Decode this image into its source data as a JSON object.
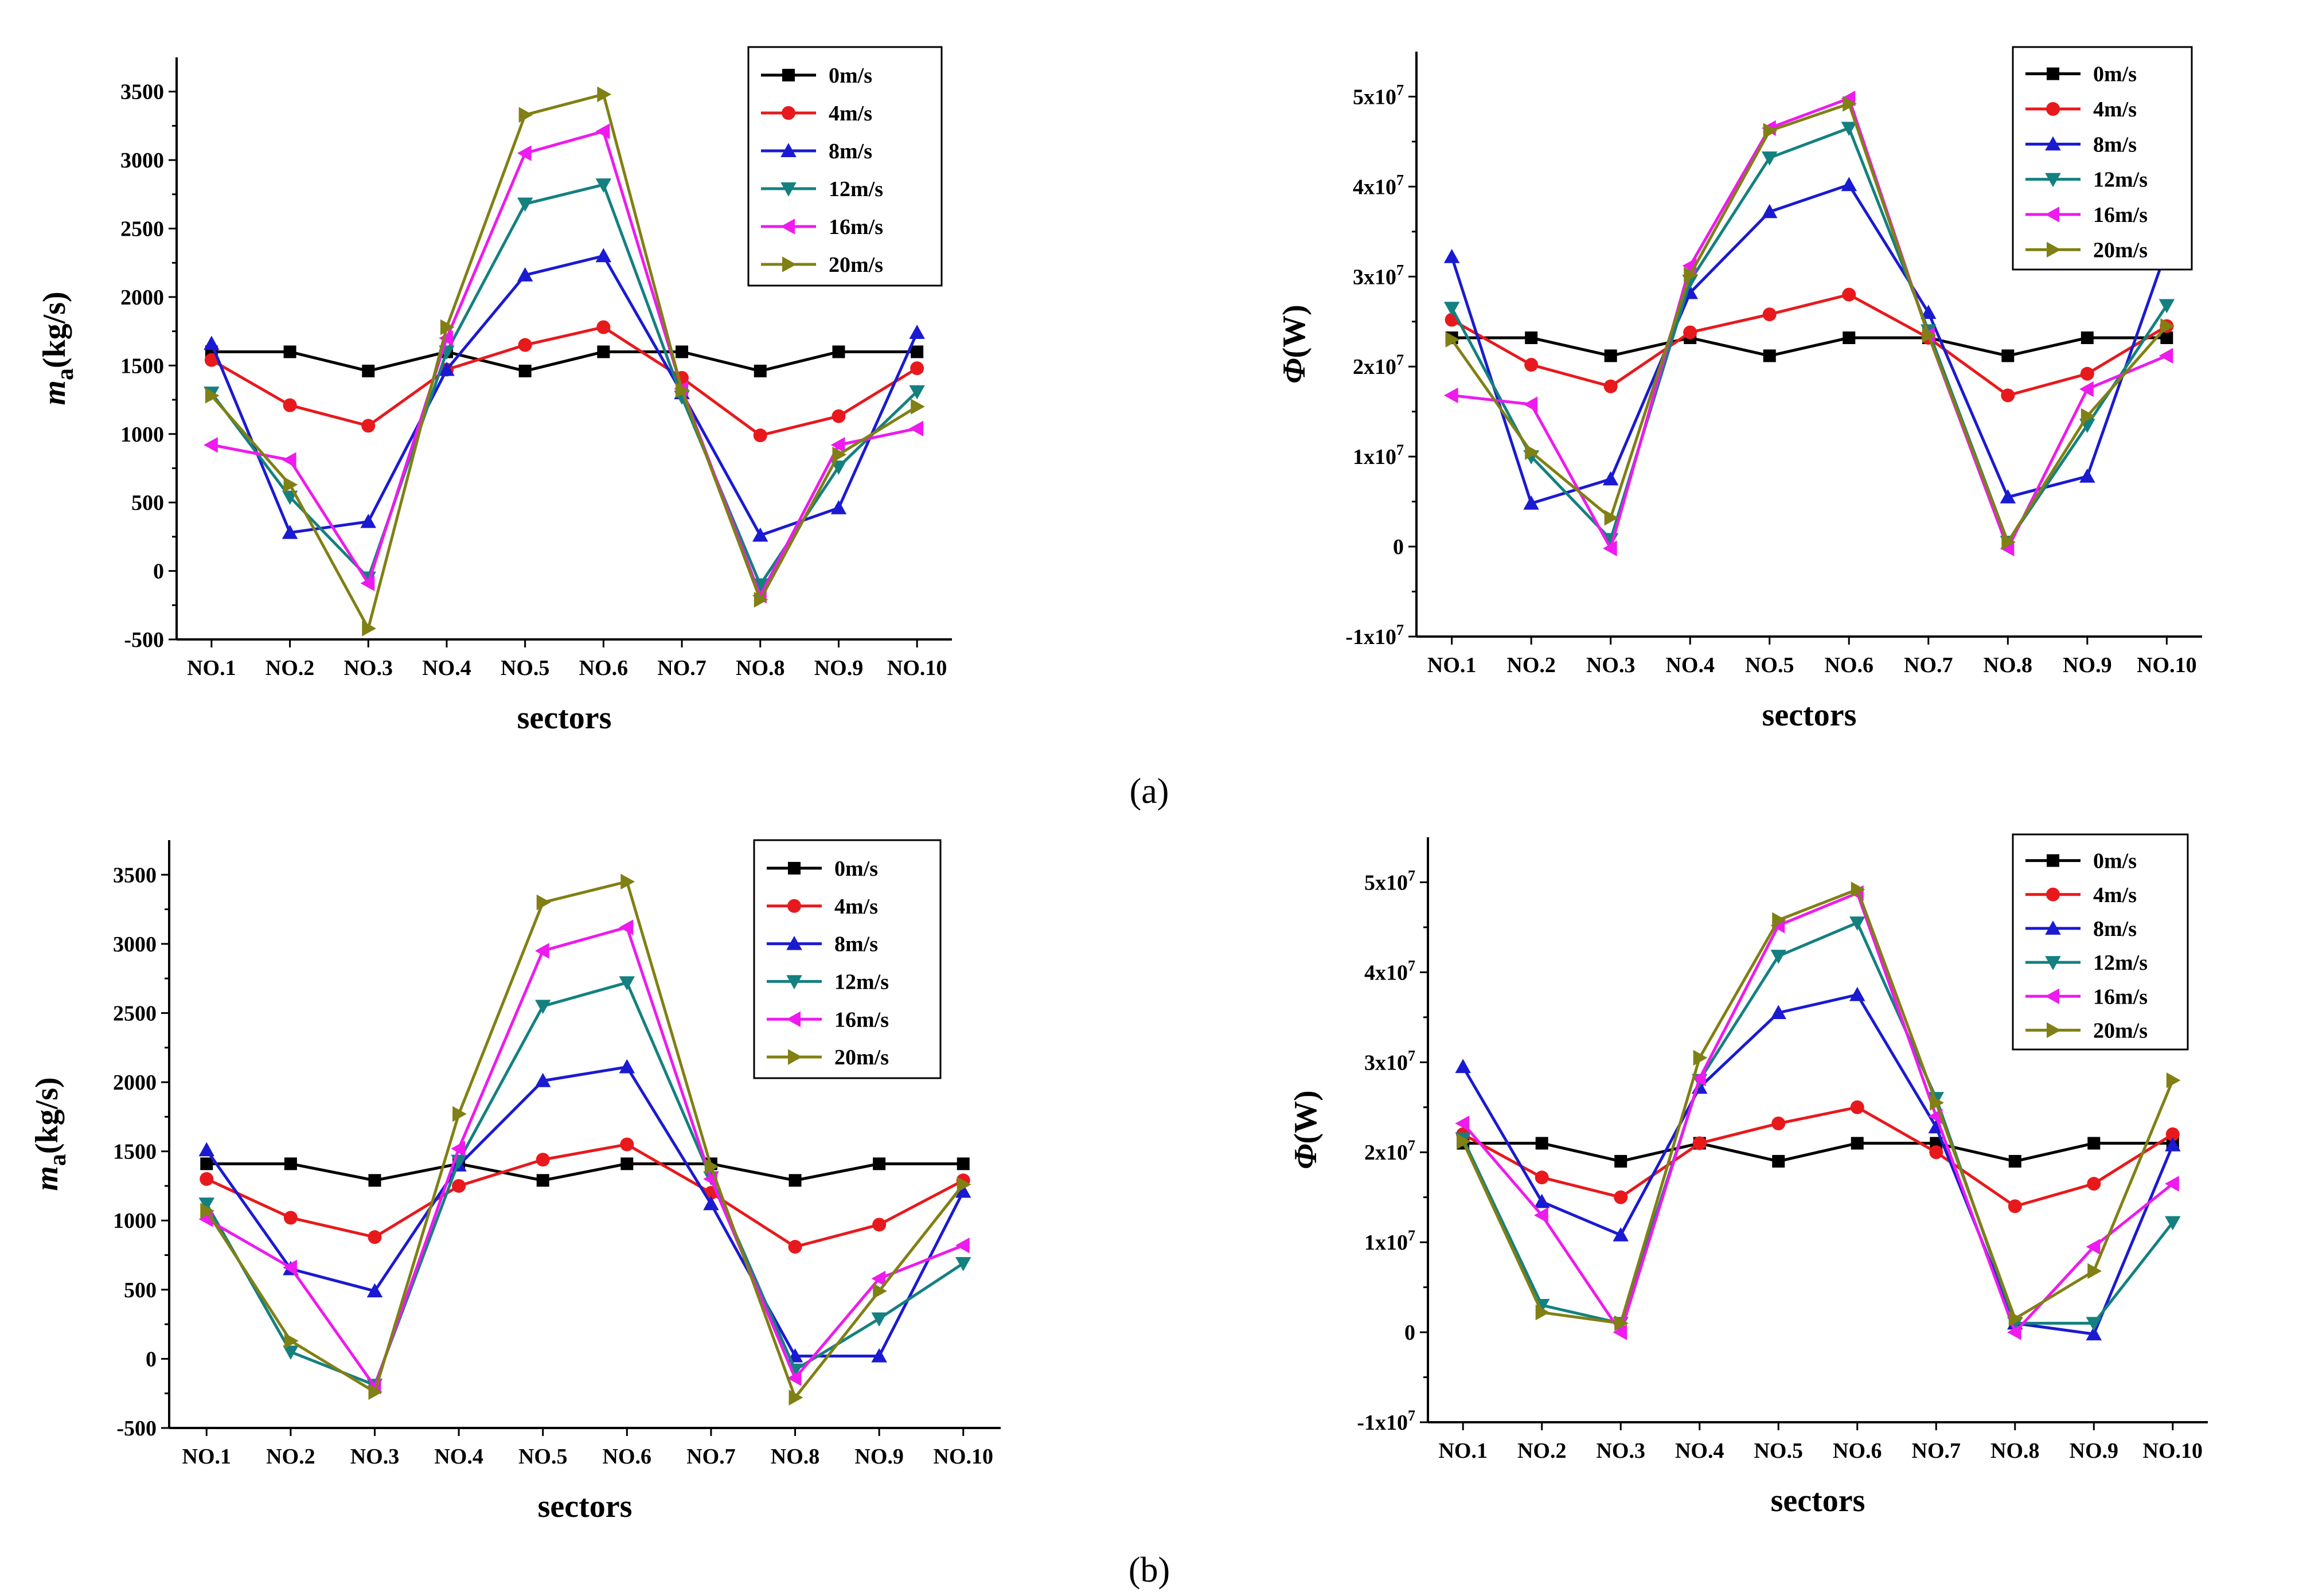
{
  "captions": [
    "(a)",
    "(b)"
  ],
  "chart_data": [
    {
      "type": "line",
      "xlabel": "sectors",
      "ylabel_main": "m",
      "ylabel_sub": "a",
      "ylabel_unit": "(kg/s)",
      "ylim": [
        -500,
        3750
      ],
      "yticks": [
        -500,
        0,
        500,
        1000,
        1500,
        2000,
        2500,
        3000,
        3500
      ],
      "ytick_labels": [
        "-500",
        "0",
        "500",
        "1000",
        "1500",
        "2000",
        "2500",
        "3000",
        "3500"
      ],
      "legend_position": "top-right",
      "categories": [
        "NO.1",
        "NO.2",
        "NO.3",
        "NO.4",
        "NO.5",
        "NO.6",
        "NO.7",
        "NO.8",
        "NO.9",
        "NO.10"
      ],
      "series": [
        {
          "name": "0m/s",
          "values": [
            1600,
            1600,
            1460,
            1600,
            1460,
            1600,
            1600,
            1460,
            1600,
            1600
          ]
        },
        {
          "name": "4m/s",
          "values": [
            1540,
            1210,
            1060,
            1470,
            1650,
            1780,
            1410,
            990,
            1130,
            1480
          ]
        },
        {
          "name": "8m/s",
          "values": [
            1660,
            280,
            360,
            1470,
            2160,
            2300,
            1300,
            260,
            460,
            1740
          ]
        },
        {
          "name": "12m/s",
          "values": [
            1300,
            540,
            -50,
            1600,
            2680,
            2820,
            1270,
            -100,
            760,
            1310
          ]
        },
        {
          "name": "16m/s",
          "values": [
            920,
            810,
            -90,
            1700,
            3050,
            3210,
            1330,
            -180,
            920,
            1040
          ]
        },
        {
          "name": "20m/s",
          "values": [
            1280,
            630,
            -420,
            1780,
            3330,
            3480,
            1320,
            -210,
            850,
            1200
          ]
        }
      ]
    },
    {
      "type": "line",
      "xlabel": "sectors",
      "ylabel_main": "Φ",
      "ylabel_unit": "(W)",
      "ylim": [
        -10000000.0,
        55000000.0
      ],
      "yticks": [
        -10000000.0,
        0,
        10000000.0,
        20000000.0,
        30000000.0,
        40000000.0,
        50000000.0
      ],
      "ytick_labels": [
        [
          "-1x10",
          "7"
        ],
        [
          "0",
          ""
        ],
        [
          "1x10",
          "7"
        ],
        [
          "2x10",
          "7"
        ],
        [
          "3x10",
          "7"
        ],
        [
          "4x10",
          "7"
        ],
        [
          "5x10",
          "7"
        ]
      ],
      "legend_position": "top-right",
      "categories": [
        "NO.1",
        "NO.2",
        "NO.3",
        "NO.4",
        "NO.5",
        "NO.6",
        "NO.7",
        "NO.8",
        "NO.9",
        "NO.10"
      ],
      "series": [
        {
          "name": "0m/s",
          "values": [
            23200000.0,
            23200000.0,
            21200000.0,
            23200000.0,
            21200000.0,
            23200000.0,
            23200000.0,
            21200000.0,
            23200000.0,
            23200000.0
          ]
        },
        {
          "name": "4m/s",
          "values": [
            25200000.0,
            20200000.0,
            17800000.0,
            23800000.0,
            25800000.0,
            28000000.0,
            23200000.0,
            16800000.0,
            19200000.0,
            24500000.0
          ]
        },
        {
          "name": "8m/s",
          "values": [
            32200000.0,
            4800000.0,
            7500000.0,
            28200000.0,
            37200000.0,
            40200000.0,
            26000000.0,
            5500000.0,
            7800000.0,
            33000000.0
          ]
        },
        {
          "name": "12m/s",
          "values": [
            26500000.0,
            10000000.0,
            800000.0,
            29500000.0,
            43200000.0,
            46500000.0,
            24000000.0,
            500000.0,
            13500000.0,
            26800000.0
          ]
        },
        {
          "name": "16m/s",
          "values": [
            16800000.0,
            15800000.0,
            -200000.0,
            31200000.0,
            46500000.0,
            49800000.0,
            23500000.0,
            -200000.0,
            17500000.0,
            21200000.0
          ]
        },
        {
          "name": "20m/s",
          "values": [
            23000000.0,
            10500000.0,
            3200000.0,
            30200000.0,
            46200000.0,
            49200000.0,
            23500000.0,
            500000.0,
            14500000.0,
            24500000.0
          ]
        }
      ]
    },
    {
      "type": "line",
      "xlabel": "sectors",
      "ylabel_main": "m",
      "ylabel_sub": "a",
      "ylabel_unit": "(kg/s)",
      "ylim": [
        -500,
        3750
      ],
      "yticks": [
        -500,
        0,
        500,
        1000,
        1500,
        2000,
        2500,
        3000,
        3500
      ],
      "ytick_labels": [
        "-500",
        "0",
        "500",
        "1000",
        "1500",
        "2000",
        "2500",
        "3000",
        "3500"
      ],
      "legend_position": "top-right",
      "categories": [
        "NO.1",
        "NO.2",
        "NO.3",
        "NO.4",
        "NO.5",
        "NO.6",
        "NO.7",
        "NO.8",
        "NO.9",
        "NO.10"
      ],
      "series": [
        {
          "name": "0m/s",
          "values": [
            1410,
            1410,
            1290,
            1410,
            1290,
            1410,
            1410,
            1290,
            1410,
            1410
          ]
        },
        {
          "name": "4m/s",
          "values": [
            1300,
            1020,
            880,
            1250,
            1440,
            1550,
            1200,
            810,
            970,
            1290
          ]
        },
        {
          "name": "8m/s",
          "values": [
            1510,
            650,
            490,
            1400,
            2010,
            2110,
            1120,
            20,
            20,
            1210
          ]
        },
        {
          "name": "12m/s",
          "values": [
            1120,
            50,
            -190,
            1430,
            2550,
            2720,
            1310,
            -80,
            290,
            690
          ]
        },
        {
          "name": "16m/s",
          "values": [
            1010,
            660,
            -200,
            1520,
            2950,
            3120,
            1300,
            -140,
            580,
            820
          ]
        },
        {
          "name": "20m/s",
          "values": [
            1070,
            130,
            -240,
            1770,
            3300,
            3450,
            1390,
            -280,
            490,
            1260
          ]
        }
      ]
    },
    {
      "type": "line",
      "xlabel": "sectors",
      "ylabel_main": "Φ",
      "ylabel_unit": "(W)",
      "ylim": [
        -10000000.0,
        55000000.0
      ],
      "yticks": [
        -10000000.0,
        0,
        10000000.0,
        20000000.0,
        30000000.0,
        40000000.0,
        50000000.0
      ],
      "ytick_labels": [
        [
          "-1x10",
          "7"
        ],
        [
          "0",
          ""
        ],
        [
          "1x10",
          "7"
        ],
        [
          "2x10",
          "7"
        ],
        [
          "3x10",
          "7"
        ],
        [
          "4x10",
          "7"
        ],
        [
          "5x10",
          "7"
        ]
      ],
      "legend_position": "top-right",
      "categories": [
        "NO.1",
        "NO.2",
        "NO.3",
        "NO.4",
        "NO.5",
        "NO.6",
        "NO.7",
        "NO.8",
        "NO.9",
        "NO.10"
      ],
      "series": [
        {
          "name": "0m/s",
          "values": [
            21000000.0,
            21000000.0,
            19000000.0,
            21000000.0,
            19000000.0,
            21000000.0,
            21000000.0,
            19000000.0,
            21000000.0,
            21000000.0
          ]
        },
        {
          "name": "4m/s",
          "values": [
            22000000.0,
            17200000.0,
            15000000.0,
            21000000.0,
            23200000.0,
            25000000.0,
            20000000.0,
            14000000.0,
            16500000.0,
            22000000.0
          ]
        },
        {
          "name": "8m/s",
          "values": [
            29500000.0,
            14500000.0,
            10800000.0,
            27200000.0,
            35500000.0,
            37500000.0,
            22800000.0,
            1000000.0,
            -200000.0,
            20800000.0
          ]
        },
        {
          "name": "12m/s",
          "values": [
            21500000.0,
            3000000.0,
            1000000.0,
            28000000.0,
            41800000.0,
            45500000.0,
            26000000.0,
            1000000.0,
            1000000.0,
            12200000.0
          ]
        },
        {
          "name": "16m/s",
          "values": [
            23200000.0,
            13000000.0,
            0.0,
            28200000.0,
            45200000.0,
            48800000.0,
            24000000.0,
            0.0,
            9500000.0,
            16500000.0
          ]
        },
        {
          "name": "20m/s",
          "values": [
            21200000.0,
            2200000.0,
            1000000.0,
            30500000.0,
            45800000.0,
            49200000.0,
            25500000.0,
            1500000.0,
            6800000.0,
            28000000.0
          ]
        }
      ]
    }
  ],
  "series_style": [
    {
      "color": "#000000",
      "marker": "square"
    },
    {
      "color": "#e8191c",
      "marker": "circle"
    },
    {
      "color": "#1a1ad2",
      "marker": "triangle-up"
    },
    {
      "color": "#148080",
      "marker": "triangle-down"
    },
    {
      "color": "#ee1aee",
      "marker": "triangle-left"
    },
    {
      "color": "#808014",
      "marker": "triangle-right"
    }
  ]
}
